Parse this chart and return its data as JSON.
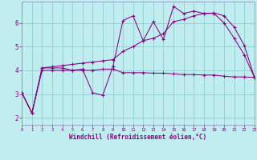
{
  "xlabel": "Windchill (Refroidissement éolien,°C)",
  "background_color": "#c0eef0",
  "grid_color": "#90cdd0",
  "line_color": "#880088",
  "spine_color": "#8888aa",
  "x_ticks": [
    0,
    1,
    2,
    3,
    4,
    5,
    6,
    7,
    8,
    9,
    10,
    11,
    12,
    13,
    14,
    15,
    16,
    17,
    18,
    19,
    20,
    21,
    22,
    23
  ],
  "y_ticks": [
    2,
    3,
    4,
    5,
    6
  ],
  "xlim": [
    0,
    23
  ],
  "ylim": [
    1.7,
    6.9
  ],
  "series": [
    {
      "x": [
        0,
        1,
        2,
        3,
        4,
        5,
        6,
        7,
        8,
        9,
        10,
        11,
        12,
        13,
        14,
        15,
        16,
        17,
        18,
        19,
        20,
        21,
        22,
        23
      ],
      "y": [
        3.05,
        2.2,
        4.1,
        4.1,
        4.1,
        4.0,
        4.05,
        3.05,
        2.95,
        4.15,
        6.1,
        6.3,
        5.25,
        6.05,
        5.3,
        6.7,
        6.4,
        6.5,
        6.4,
        6.4,
        6.0,
        5.35,
        4.65,
        3.7
      ]
    },
    {
      "x": [
        0,
        1,
        2,
        3,
        4,
        5,
        6,
        7,
        8,
        9,
        10,
        11,
        12,
        13,
        14,
        15,
        16,
        17,
        18,
        19,
        20,
        21,
        22,
        23
      ],
      "y": [
        3.05,
        2.2,
        4.1,
        4.15,
        4.2,
        4.25,
        4.3,
        4.35,
        4.4,
        4.45,
        4.8,
        5.0,
        5.25,
        5.35,
        5.55,
        6.05,
        6.15,
        6.3,
        6.4,
        6.42,
        6.3,
        5.82,
        5.05,
        3.7
      ]
    },
    {
      "x": [
        0,
        1,
        2,
        3,
        4,
        5,
        6,
        7,
        8,
        9,
        10,
        11,
        12,
        13,
        14,
        15,
        16,
        17,
        18,
        19,
        20,
        21,
        22,
        23
      ],
      "y": [
        3.05,
        2.2,
        4.0,
        4.0,
        4.0,
        4.0,
        4.0,
        4.0,
        4.05,
        4.05,
        3.9,
        3.9,
        3.9,
        3.88,
        3.88,
        3.85,
        3.82,
        3.82,
        3.8,
        3.8,
        3.75,
        3.72,
        3.72,
        3.7
      ]
    }
  ]
}
